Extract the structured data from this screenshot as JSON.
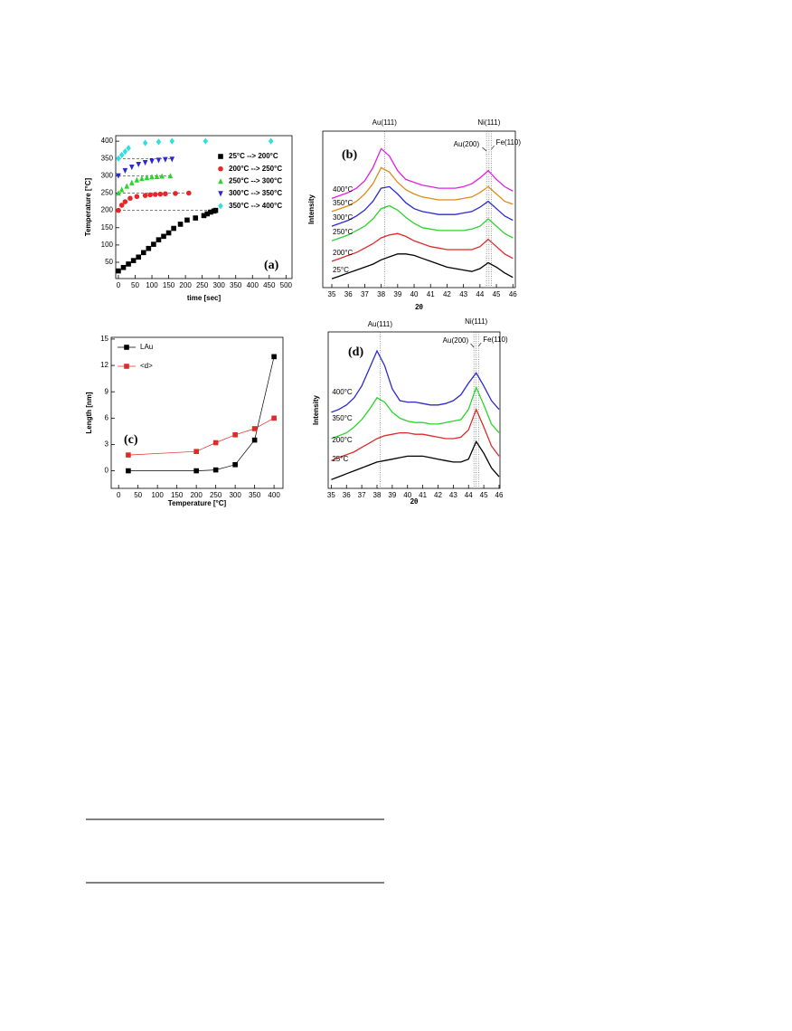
{
  "chart_data": [
    {
      "type": "scatter",
      "panel_label": "(a)",
      "x_label": "time [sec]",
      "y_label": "Temperature [°C]",
      "xlim": [
        -8,
        518
      ],
      "ylim": [
        3,
        416
      ],
      "xticks": [
        0,
        50,
        100,
        150,
        200,
        250,
        300,
        350,
        400,
        450,
        500
      ],
      "yticks": [
        50,
        100,
        150,
        200,
        250,
        300,
        350,
        400
      ],
      "hlines": [
        200,
        250,
        300,
        350
      ],
      "legend": "upper right",
      "series": [
        {
          "name": "25°C --> 200°C",
          "color": "#000000",
          "marker": "square",
          "x": [
            0,
            15,
            30,
            45,
            60,
            75,
            90,
            105,
            120,
            135,
            150,
            165,
            185,
            205,
            230,
            255,
            265,
            275,
            285,
            290
          ],
          "values": [
            25,
            35,
            45,
            55,
            65,
            78,
            90,
            102,
            115,
            125,
            135,
            148,
            160,
            172,
            178,
            185,
            190,
            195,
            198,
            200
          ]
        },
        {
          "name": "200°C --> 250°C",
          "color": "#e8262a",
          "marker": "circle",
          "x": [
            0,
            10,
            20,
            35,
            55,
            80,
            95,
            110,
            125,
            140,
            170,
            210
          ],
          "values": [
            200,
            215,
            225,
            235,
            240,
            243,
            245,
            246,
            247,
            248,
            249,
            250
          ]
        },
        {
          "name": "250°C --> 300°C",
          "color": "#2bd42b",
          "marker": "triangle-up",
          "x": [
            0,
            10,
            25,
            40,
            55,
            70,
            85,
            100,
            115,
            130,
            155
          ],
          "values": [
            250,
            260,
            270,
            280,
            288,
            292,
            295,
            297,
            298,
            299,
            300
          ]
        },
        {
          "name": "300°C --> 350°C",
          "color": "#2a2ad0",
          "marker": "triangle-down",
          "x": [
            0,
            20,
            40,
            60,
            80,
            100,
            120,
            140,
            160
          ],
          "values": [
            300,
            315,
            325,
            333,
            338,
            342,
            345,
            347,
            348
          ]
        },
        {
          "name": "350°C --> 400°C",
          "color": "#33dede",
          "marker": "diamond",
          "x": [
            0,
            10,
            20,
            30,
            80,
            120,
            160,
            260,
            455
          ],
          "values": [
            350,
            360,
            370,
            380,
            395,
            398,
            400,
            400,
            400
          ]
        }
      ]
    },
    {
      "type": "line",
      "panel_label": "(b)",
      "x_label": "2θ",
      "y_label": "Intensity",
      "xlim": [
        34.45,
        46.15
      ],
      "ylim": [
        -2,
        105
      ],
      "xticks": [
        35,
        36,
        37,
        38,
        39,
        40,
        41,
        42,
        43,
        44,
        45,
        46
      ],
      "legend": "inline",
      "references": [
        {
          "label": "Au(111)",
          "value": 38.2
        },
        {
          "label": "Au(200)",
          "value": 44.4
        },
        {
          "label": "Ni(111)",
          "value": 44.55
        },
        {
          "label": "Fe(110)",
          "value": 44.7
        }
      ],
      "x": [
        35,
        35.5,
        36,
        36.5,
        37,
        37.5,
        38,
        38.5,
        39,
        39.5,
        40,
        40.5,
        41,
        41.5,
        42,
        42.5,
        43,
        43.5,
        44,
        44.5,
        45,
        45.5,
        46
      ],
      "series": [
        {
          "name": "400°C",
          "color": "#e020e0",
          "values": [
            59,
            61,
            63,
            66,
            71,
            80,
            93,
            88,
            78,
            72,
            70,
            68,
            67,
            66,
            66,
            66,
            67,
            69,
            73,
            78,
            72,
            67,
            64
          ]
        },
        {
          "name": "350°C",
          "color": "#e08a1a",
          "values": [
            50,
            52,
            54,
            57,
            62,
            69,
            80,
            77,
            70,
            65,
            62,
            60,
            59,
            58,
            58,
            58,
            59,
            60,
            63,
            67,
            62,
            57,
            55
          ]
        },
        {
          "name": "300°C",
          "color": "#2a2ad0",
          "values": [
            40,
            42,
            44,
            47,
            51,
            57,
            66,
            67,
            62,
            56,
            52,
            50,
            49,
            48,
            48,
            48,
            49,
            50,
            53,
            57,
            52,
            47,
            44
          ]
        },
        {
          "name": "250°C",
          "color": "#2bd42b",
          "values": [
            30,
            32,
            34,
            37,
            40,
            45,
            52,
            54,
            51,
            46,
            42,
            39,
            38,
            37,
            37,
            37,
            37,
            38,
            40,
            45,
            40,
            35,
            32
          ]
        },
        {
          "name": "200°C",
          "color": "#e02a2a",
          "values": [
            16,
            18,
            20,
            22,
            25,
            28,
            32,
            34,
            35,
            33,
            30,
            28,
            26,
            25,
            24,
            24,
            24,
            24,
            26,
            31,
            26,
            21,
            18
          ]
        },
        {
          "name": "25°C",
          "color": "#000000",
          "values": [
            4,
            6,
            8,
            10,
            12,
            14,
            17,
            19,
            21,
            21,
            20,
            18,
            16,
            14,
            12,
            11,
            10,
            9,
            11,
            15,
            12,
            8,
            5
          ]
        }
      ]
    },
    {
      "type": "line",
      "panel_label": "(c)",
      "x_label": "Temperature [°C]",
      "y_label": "Length [nm]",
      "xlim": [
        -19,
        423
      ],
      "ylim": [
        -2,
        15.2
      ],
      "xticks": [
        0,
        50,
        100,
        150,
        200,
        250,
        300,
        350,
        400
      ],
      "yticks": [
        0,
        3,
        6,
        9,
        12,
        15
      ],
      "legend": "upper left",
      "x": [
        25,
        200,
        250,
        300,
        350,
        400
      ],
      "series": [
        {
          "name": "LAu",
          "color": "#000000",
          "marker": "square",
          "values": [
            0,
            0,
            0.1,
            0.7,
            3.5,
            13
          ]
        },
        {
          "name": "<d>",
          "color": "#e02a2a",
          "marker": "square",
          "values": [
            1.8,
            2.2,
            3.2,
            4.1,
            4.8,
            6.0
          ]
        }
      ]
    },
    {
      "type": "line",
      "panel_label": "(d)",
      "x_label": "2θ",
      "y_label": "Intensity",
      "xlim": [
        34.8,
        46.06
      ],
      "ylim": [
        -2,
        105
      ],
      "xticks": [
        35,
        36,
        37,
        38,
        39,
        40,
        41,
        42,
        43,
        44,
        45,
        46
      ],
      "legend": "inline",
      "references": [
        {
          "label": "Au(111)",
          "value": 38.2
        },
        {
          "label": "Au(200)",
          "value": 44.35
        },
        {
          "label": "Ni(111)",
          "value": 44.5
        },
        {
          "label": "Fe(110)",
          "value": 44.65
        }
      ],
      "x": [
        35,
        35.5,
        36,
        36.5,
        37,
        37.5,
        38,
        38.5,
        39,
        39.5,
        40,
        40.5,
        41,
        41.5,
        42,
        42.5,
        43,
        43.5,
        44,
        44.5,
        45,
        45.5,
        46
      ],
      "series": [
        {
          "name": "400°C",
          "color": "#2a2ad0",
          "values": [
            50,
            52,
            55,
            60,
            68,
            80,
            92,
            82,
            66,
            58,
            57,
            57,
            56,
            55,
            55,
            56,
            58,
            62,
            70,
            77,
            68,
            58,
            52
          ]
        },
        {
          "name": "350°C",
          "color": "#2bd42b",
          "values": [
            32,
            34,
            36,
            40,
            45,
            52,
            60,
            57,
            50,
            46,
            44,
            43,
            43,
            42,
            42,
            43,
            44,
            45,
            52,
            67,
            55,
            42,
            36
          ]
        },
        {
          "name": "200°C",
          "color": "#e02a2a",
          "values": [
            17,
            19,
            21,
            23,
            26,
            29,
            32,
            34,
            35,
            36,
            36,
            35,
            35,
            34,
            33,
            32,
            32,
            33,
            38,
            52,
            40,
            27,
            20
          ]
        },
        {
          "name": "25°C",
          "color": "#000000",
          "values": [
            4,
            6,
            8,
            10,
            12,
            14,
            16,
            17,
            18,
            19,
            20,
            20,
            20,
            19,
            18,
            17,
            16,
            16,
            18,
            30,
            22,
            12,
            6
          ]
        }
      ]
    }
  ]
}
